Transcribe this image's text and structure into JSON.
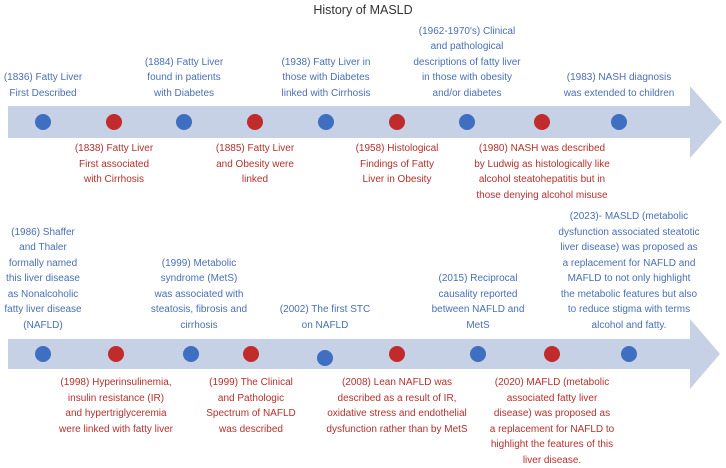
{
  "title": "History of MASLD",
  "colors": {
    "blue": "#3f6fc0",
    "red": "#c22b2b",
    "arrow": "#c7d1e6",
    "blue_text": "#4a6fb3",
    "red_text": "#b3312d"
  },
  "rows": [
    {
      "events": [
        {
          "color": "blue",
          "lines": [
            "(1836) Fatty Liver",
            "First Described"
          ]
        },
        {
          "color": "red",
          "lines": [
            "(1838) Fatty Liver",
            "First associated",
            "with Cirrhosis"
          ]
        },
        {
          "color": "blue",
          "lines": [
            "(1884) Fatty Liver",
            "found in patients",
            "with Diabetes"
          ]
        },
        {
          "color": "red",
          "lines": [
            "(1885) Fatty Liver",
            "and Obesity were",
            "linked"
          ]
        },
        {
          "color": "blue",
          "lines": [
            "(1938) Fatty Liver in",
            "those with Diabetes",
            "linked with Cirrhosis"
          ]
        },
        {
          "color": "red",
          "lines": [
            "(1958) Histological",
            "Findings of Fatty",
            "Liver in Obesity"
          ]
        },
        {
          "color": "blue",
          "lines": [
            "(1962-1970's) Clinical",
            "and pathological",
            "descriptions of fatty liver",
            "in those with obesity",
            "and/or diabetes"
          ]
        },
        {
          "color": "red",
          "lines": [
            "(1980) NASH was described",
            "by Ludwig as histologically like",
            "alcohol steatohepatitis but in",
            "those denying alcohol misuse"
          ]
        },
        {
          "color": "blue",
          "lines": [
            "(1983) NASH diagnosis",
            "was extended to children"
          ]
        }
      ]
    },
    {
      "events": [
        {
          "color": "blue",
          "lines": [
            "(1986) Shaffer",
            "and Thaler",
            "formally named",
            "this liver disease",
            "as Nonalcoholic",
            "fatty liver disease",
            "(NAFLD)"
          ]
        },
        {
          "color": "red",
          "lines": [
            "(1998) Hyperinsulinemia,",
            "insulin resistance (IR)",
            "and hypertriglyceremia",
            "were linked with fatty liver"
          ]
        },
        {
          "color": "blue",
          "lines": [
            "(1999) Metabolic",
            "syndrome (MetS)",
            "was associated with",
            "steatosis, fibrosis and",
            "cirrhosis"
          ]
        },
        {
          "color": "red",
          "lines": [
            "(1999) The Clinical",
            "and Pathologic",
            "Spectrum of NAFLD",
            "was described"
          ]
        },
        {
          "color": "blue",
          "lines": [
            "(2002) The first STC",
            "on NAFLD"
          ]
        },
        {
          "color": "red",
          "lines": [
            "(2008) Lean NAFLD was",
            "described as a result of IR,",
            "oxidative stress and endothelial",
            "dysfunction rather than by MetS"
          ]
        },
        {
          "color": "blue",
          "lines": [
            "(2015) Reciprocal",
            "causality reported",
            "between NAFLD and",
            "MetS"
          ]
        },
        {
          "color": "red",
          "lines": [
            "(2020) MAFLD (metabolic",
            "associated fatty liver",
            "disease) was proposed as",
            "a replacement for NAFLD to",
            "highlight the features of this",
            "liver disease."
          ]
        },
        {
          "color": "blue",
          "lines": [
            "(2023)- MASLD (metabolic",
            "dysfunction associated steatotic",
            "liver disease) was proposed as",
            "a replacement for NAFLD and",
            "MAFLD to not only highlight",
            "the metabolic features but also",
            "to reduce stigma with terms",
            "alcohol and fatty."
          ]
        }
      ]
    }
  ]
}
